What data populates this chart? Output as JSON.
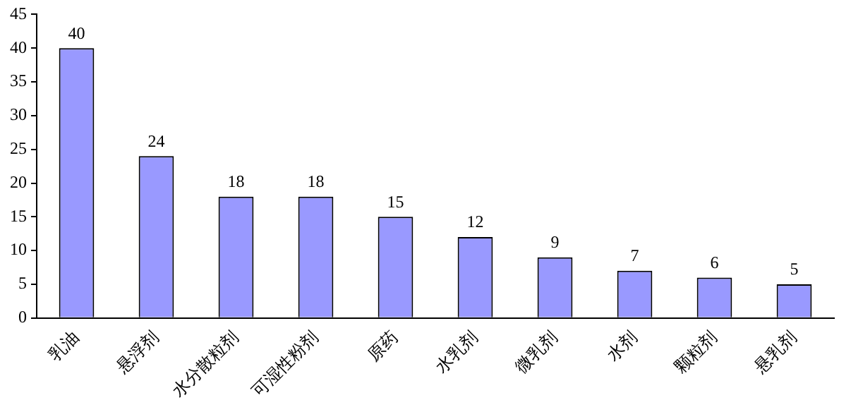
{
  "chart_data": {
    "type": "bar",
    "categories": [
      "乳油",
      "悬浮剂",
      "水分散粒剂",
      "可湿性粉剂",
      "原药",
      "水乳剂",
      "微乳剂",
      "水剂",
      "颗粒剂",
      "悬乳剂"
    ],
    "values": [
      40,
      24,
      18,
      18,
      15,
      12,
      9,
      7,
      6,
      5
    ],
    "color": "#9999ff",
    "ylim": [
      0,
      45
    ],
    "yticks": [
      0,
      5,
      10,
      15,
      20,
      25,
      30,
      35,
      40,
      45
    ],
    "grid": false,
    "legend": false,
    "data_labels": true
  }
}
